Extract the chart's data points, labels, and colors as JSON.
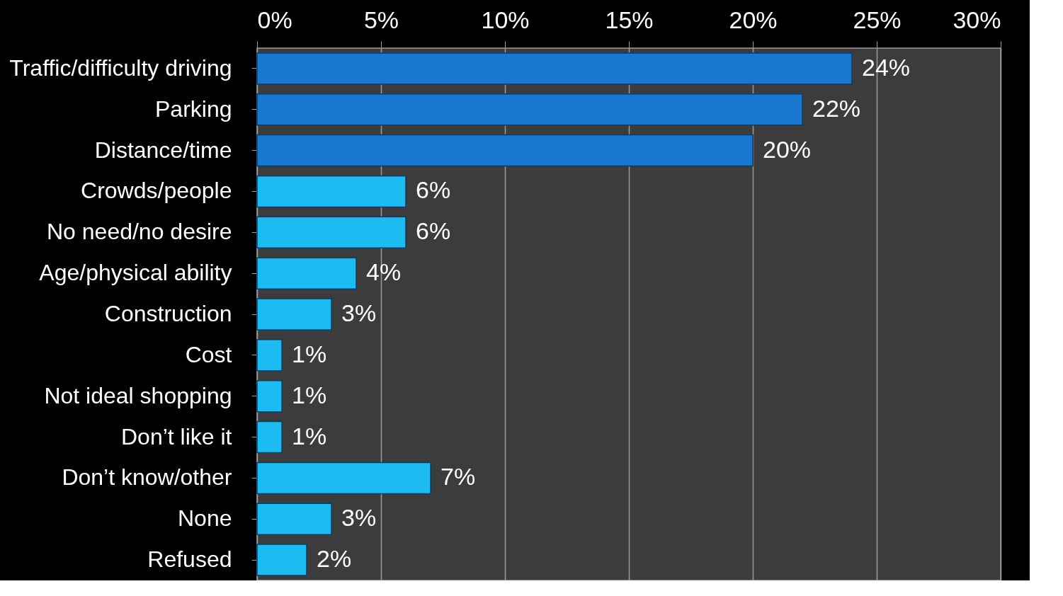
{
  "chart_data": {
    "type": "bar",
    "orientation": "horizontal",
    "categories": [
      "Traffic/difficulty driving",
      "Parking",
      "Distance/time",
      "Crowds/people",
      "No need/no desire",
      "Age/physical ability",
      "Construction",
      "Cost",
      "Not ideal shopping",
      "Don’t like it",
      "Don’t know/other",
      "None",
      "Refused"
    ],
    "values": [
      24,
      22,
      20,
      6,
      6,
      4,
      3,
      1,
      1,
      1,
      7,
      3,
      2
    ],
    "colors": [
      "#1877d0",
      "#1877d0",
      "#1877d0",
      "#1cbcf2",
      "#1cbcf2",
      "#1cbcf2",
      "#1cbcf2",
      "#1cbcf2",
      "#1cbcf2",
      "#1cbcf2",
      "#1cbcf2",
      "#1cbcf2",
      "#1cbcf2"
    ],
    "value_labels": [
      "24%",
      "22%",
      "20%",
      "6%",
      "6%",
      "4%",
      "3%",
      "1%",
      "1%",
      "1%",
      "7%",
      "3%",
      "2%"
    ],
    "xlim": [
      0,
      30
    ],
    "xticks": [
      {
        "value": 0,
        "label": "0%"
      },
      {
        "value": 5,
        "label": "5%"
      },
      {
        "value": 10,
        "label": "10%"
      },
      {
        "value": 15,
        "label": "15%"
      },
      {
        "value": 20,
        "label": "20%"
      },
      {
        "value": 25,
        "label": "25%"
      },
      {
        "value": 30,
        "label": "30%"
      }
    ],
    "grid": "x",
    "legend": false
  }
}
